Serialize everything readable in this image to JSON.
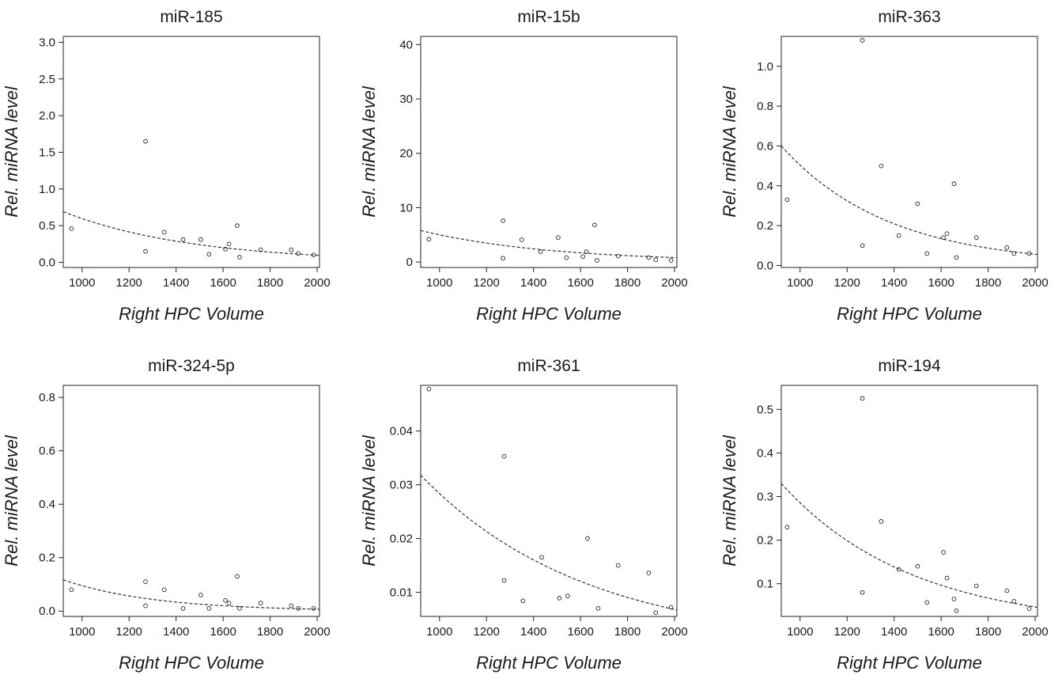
{
  "chart_data": [
    {
      "type": "scatter",
      "title": "miR-185",
      "xlabel": "Right HPC Volume",
      "ylabel": "Rel. miRNA level",
      "xlim": [
        920,
        2010
      ],
      "ylim": [
        -0.07,
        3.08
      ],
      "xticks": [
        1000,
        1200,
        1400,
        1600,
        1800,
        2000
      ],
      "yticks": [
        0.0,
        0.5,
        1.0,
        1.5,
        2.0,
        2.5,
        3.0
      ],
      "ytick_labels": [
        "0.0",
        "0.5",
        "1.0",
        "1.5",
        "2.0",
        "2.5",
        "3.0"
      ],
      "points": [
        [
          955,
          0.46
        ],
        [
          1270,
          1.65
        ],
        [
          1270,
          0.15
        ],
        [
          1350,
          0.41
        ],
        [
          1430,
          0.31
        ],
        [
          1505,
          0.31
        ],
        [
          1540,
          0.11
        ],
        [
          1610,
          0.18
        ],
        [
          1625,
          0.25
        ],
        [
          1660,
          0.5
        ],
        [
          1670,
          0.07
        ],
        [
          1760,
          0.17
        ],
        [
          1890,
          0.17
        ],
        [
          1920,
          0.12
        ],
        [
          1985,
          0.1
        ]
      ],
      "fit": {
        "type": "exponential",
        "a": 0.69,
        "b": 0.095,
        "x0": 920,
        "x1": 2010
      }
    },
    {
      "type": "scatter",
      "title": "miR-15b",
      "xlabel": "Right HPC Volume",
      "ylabel": "Rel. miRNA level",
      "xlim": [
        920,
        2010
      ],
      "ylim": [
        -1.0,
        41.5
      ],
      "xticks": [
        1000,
        1200,
        1400,
        1600,
        1800,
        2000
      ],
      "yticks": [
        0,
        10,
        20,
        30,
        40
      ],
      "ytick_labels": [
        "0",
        "10",
        "20",
        "30",
        "40"
      ],
      "points": [
        [
          955,
          4.2
        ],
        [
          1270,
          7.6
        ],
        [
          1270,
          0.7
        ],
        [
          1350,
          4.1
        ],
        [
          1430,
          1.9
        ],
        [
          1505,
          4.5
        ],
        [
          1540,
          0.8
        ],
        [
          1610,
          1.0
        ],
        [
          1625,
          1.9
        ],
        [
          1660,
          6.8
        ],
        [
          1670,
          0.3
        ],
        [
          1760,
          1.1
        ],
        [
          1890,
          0.8
        ],
        [
          1920,
          0.4
        ],
        [
          1985,
          0.3
        ]
      ],
      "fit": {
        "type": "exponential",
        "a": 5.8,
        "b": 0.8,
        "x0": 920,
        "x1": 2010
      }
    },
    {
      "type": "scatter",
      "title": "miR-363",
      "xlabel": "Right HPC Volume",
      "ylabel": "Rel. miRNA level",
      "xlim": [
        920,
        2010
      ],
      "ylim": [
        -0.01,
        1.15
      ],
      "xticks": [
        1000,
        1200,
        1400,
        1600,
        1800,
        2000
      ],
      "yticks": [
        0.0,
        0.2,
        0.4,
        0.6,
        0.8,
        1.0
      ],
      "ytick_labels": [
        "0.0",
        "0.2",
        "0.4",
        "0.6",
        "0.8",
        "1.0"
      ],
      "points": [
        [
          945,
          0.33
        ],
        [
          1265,
          1.13
        ],
        [
          1265,
          0.1
        ],
        [
          1345,
          0.5
        ],
        [
          1420,
          0.15
        ],
        [
          1500,
          0.31
        ],
        [
          1540,
          0.06
        ],
        [
          1610,
          0.14
        ],
        [
          1625,
          0.16
        ],
        [
          1655,
          0.41
        ],
        [
          1665,
          0.04
        ],
        [
          1750,
          0.14
        ],
        [
          1880,
          0.09
        ],
        [
          1910,
          0.06
        ],
        [
          1975,
          0.06
        ]
      ],
      "fit": {
        "type": "exponential",
        "a": 0.6,
        "b": 0.055,
        "x0": 920,
        "x1": 2010
      }
    },
    {
      "type": "scatter",
      "title": "miR-324-5p",
      "xlabel": "Right HPC Volume",
      "ylabel": "Rel. miRNA level",
      "xlim": [
        920,
        2010
      ],
      "ylim": [
        -0.02,
        0.845
      ],
      "xticks": [
        1000,
        1200,
        1400,
        1600,
        1800,
        2000
      ],
      "yticks": [
        0.0,
        0.2,
        0.4,
        0.6,
        0.8
      ],
      "ytick_labels": [
        "0.0",
        "0.2",
        "0.4",
        "0.6",
        "0.8"
      ],
      "points": [
        [
          955,
          0.08
        ],
        [
          1270,
          0.11
        ],
        [
          1270,
          0.02
        ],
        [
          1350,
          0.08
        ],
        [
          1430,
          0.01
        ],
        [
          1505,
          0.06
        ],
        [
          1540,
          0.01
        ],
        [
          1610,
          0.04
        ],
        [
          1625,
          0.03
        ],
        [
          1660,
          0.13
        ],
        [
          1670,
          0.01
        ],
        [
          1760,
          0.03
        ],
        [
          1890,
          0.02
        ],
        [
          1920,
          0.01
        ],
        [
          1985,
          0.01
        ]
      ],
      "fit": {
        "type": "exponential",
        "a": 0.117,
        "b": 0.007,
        "x0": 920,
        "x1": 2010
      }
    },
    {
      "type": "scatter",
      "title": "miR-361",
      "xlabel": "Right HPC Volume",
      "ylabel": "Rel. miRNA level",
      "xlim": [
        920,
        2010
      ],
      "ylim": [
        0.0055,
        0.0485
      ],
      "xticks": [
        1000,
        1200,
        1400,
        1600,
        1800,
        2000
      ],
      "yticks": [
        0.01,
        0.02,
        0.03,
        0.04
      ],
      "ytick_labels": [
        "0.01",
        "0.02",
        "0.03",
        "0.04"
      ],
      "points": [
        [
          955,
          0.0478
        ],
        [
          1275,
          0.0353
        ],
        [
          1275,
          0.0122
        ],
        [
          1355,
          0.0084
        ],
        [
          1435,
          0.0165
        ],
        [
          1510,
          0.0089
        ],
        [
          1545,
          0.0093
        ],
        [
          1630,
          0.02
        ],
        [
          1675,
          0.007
        ],
        [
          1760,
          0.015
        ],
        [
          1890,
          0.0136
        ],
        [
          1920,
          0.0062
        ],
        [
          1985,
          0.0072
        ]
      ],
      "fit": {
        "type": "exponential",
        "a": 0.0318,
        "b": 0.0067,
        "x0": 920,
        "x1": 2010
      }
    },
    {
      "type": "scatter",
      "title": "miR-194",
      "xlabel": "Right HPC Volume",
      "ylabel": "Rel. miRNA level",
      "xlim": [
        920,
        2010
      ],
      "ylim": [
        0.025,
        0.555
      ],
      "xticks": [
        1000,
        1200,
        1400,
        1600,
        1800,
        2000
      ],
      "yticks": [
        0.1,
        0.2,
        0.3,
        0.4,
        0.5
      ],
      "ytick_labels": [
        "0.1",
        "0.2",
        "0.3",
        "0.4",
        "0.5"
      ],
      "points": [
        [
          945,
          0.23
        ],
        [
          1265,
          0.525
        ],
        [
          1265,
          0.08
        ],
        [
          1345,
          0.243
        ],
        [
          1420,
          0.133
        ],
        [
          1500,
          0.14
        ],
        [
          1540,
          0.057
        ],
        [
          1610,
          0.172
        ],
        [
          1625,
          0.113
        ],
        [
          1655,
          0.065
        ],
        [
          1665,
          0.038
        ],
        [
          1750,
          0.095
        ],
        [
          1880,
          0.084
        ],
        [
          1910,
          0.06
        ],
        [
          1975,
          0.043
        ]
      ],
      "fit": {
        "type": "exponential",
        "a": 0.33,
        "b": 0.046,
        "x0": 920,
        "x1": 2010
      }
    }
  ]
}
